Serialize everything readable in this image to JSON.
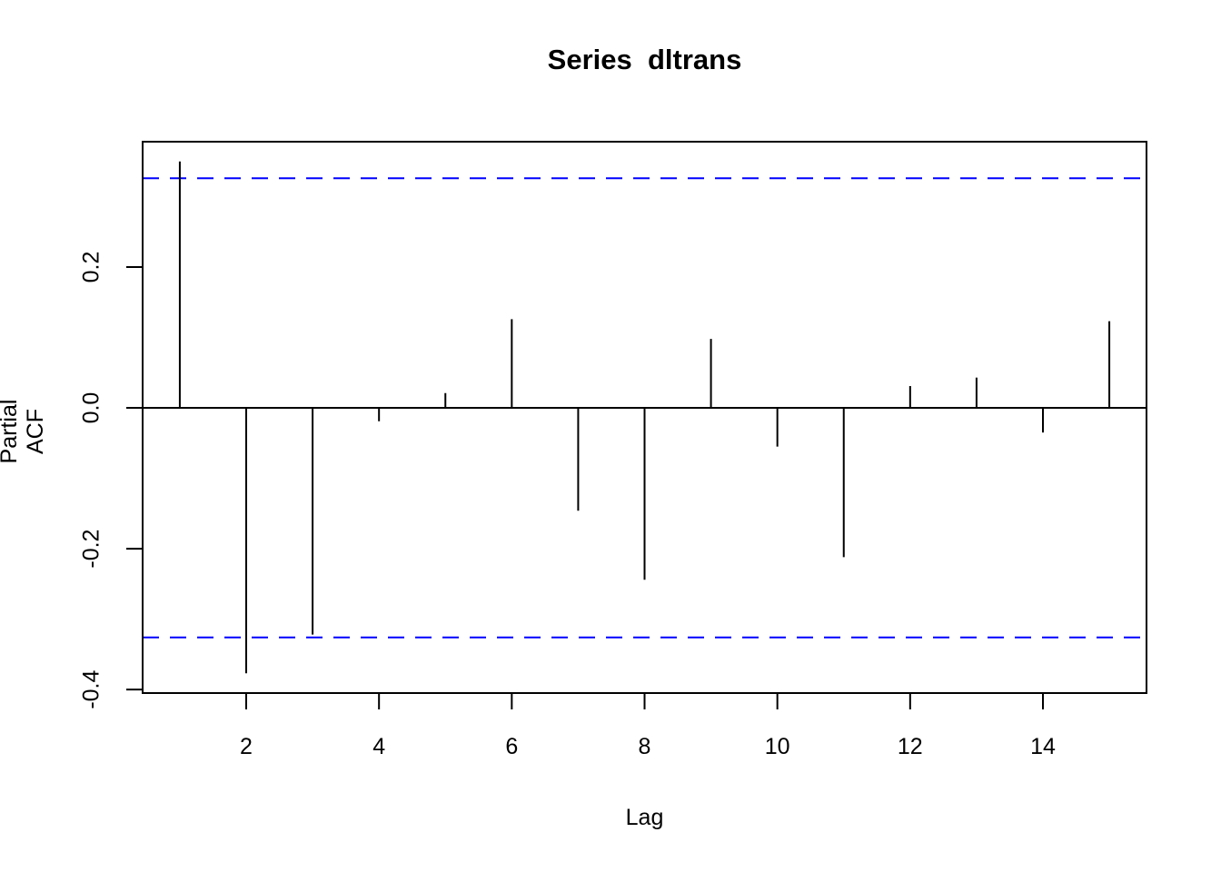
{
  "chart_data": {
    "type": "bar",
    "subtype": "stem-pacf",
    "title": "Series  dltrans",
    "xlabel": "Lag",
    "ylabel": "Partial ACF",
    "x": [
      1,
      2,
      3,
      4,
      5,
      6,
      7,
      8,
      9,
      10,
      11,
      12,
      13,
      14,
      15
    ],
    "values": [
      0.35,
      -0.377,
      -0.322,
      -0.019,
      0.021,
      0.126,
      -0.146,
      -0.244,
      0.098,
      -0.055,
      -0.212,
      0.031,
      0.043,
      -0.035,
      0.123
    ],
    "confidence_bound": 0.326,
    "confidence_line_style": "dashed",
    "xlim": [
      0.44,
      15.56
    ],
    "ylim": [
      -0.405,
      0.378
    ],
    "x_ticks": [
      2,
      4,
      6,
      8,
      10,
      12,
      14
    ],
    "x_tick_labels": [
      "2",
      "4",
      "6",
      "8",
      "10",
      "12",
      "14"
    ],
    "y_ticks": [
      0.2,
      0.0,
      -0.2,
      -0.4
    ],
    "y_tick_labels": [
      "0.2",
      "0.0",
      "-0.2",
      "-0.4"
    ],
    "grid": "off",
    "legend": "none",
    "colors": {
      "stem": "#000000",
      "axis": "#000000",
      "confidence": "#0000ff",
      "background": "#ffffff",
      "text": "#000000"
    }
  }
}
